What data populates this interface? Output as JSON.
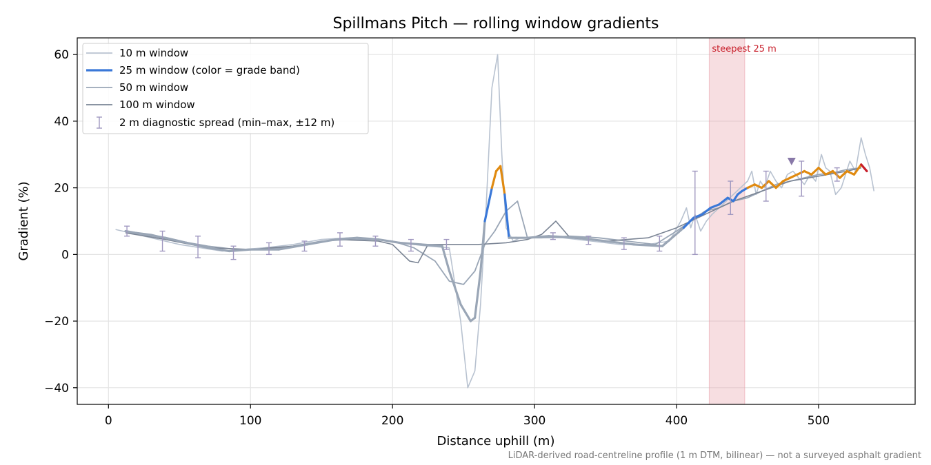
{
  "chart_data": {
    "type": "line",
    "title": "Spillmans Pitch — rolling window gradients",
    "xlabel": "Distance uphill (m)",
    "ylabel": "Gradient (%)",
    "xlim": [
      -22,
      568
    ],
    "ylim": [
      -45,
      65
    ],
    "xticks": [
      0,
      100,
      200,
      300,
      400,
      500
    ],
    "yticks": [
      -40,
      -20,
      0,
      20,
      40,
      60
    ],
    "xtick_labels": [
      "0",
      "100",
      "200",
      "300",
      "400",
      "500"
    ],
    "ytick_labels": [
      "−40",
      "−20",
      "0",
      "20",
      "40",
      "60"
    ],
    "grid": true,
    "legend_position": "top-left",
    "footnote": "LiDAR-derived road-centreline profile (1 m DTM, bilinear) — not a surveyed asphalt gradient",
    "highlight": {
      "label": "steepest 25 m",
      "x_start": 423,
      "x_end": 448,
      "color": "#e8a0a8"
    },
    "marker": {
      "x": 481,
      "y": 28,
      "color": "#8878a8",
      "shape": "triangle-down"
    },
    "colors": {
      "w10": "#b8c2d0",
      "w25": "#3a78d8",
      "w50": "#9aa6b6",
      "w100": "#7a8494",
      "spread": "#a098c0",
      "band_low": "#3a78d8",
      "band_mid": "#e08a10",
      "band_high": "#c81e2a"
    },
    "grade_bands": [
      {
        "max": 20,
        "color": "#3a78d8"
      },
      {
        "max": 26,
        "color": "#e08a10"
      },
      {
        "max": 999,
        "color": "#c81e2a"
      }
    ],
    "series": [
      {
        "name": "10 m window",
        "color": "#b8c2d0",
        "width": 1.6,
        "x": [
          5,
          20,
          35,
          50,
          65,
          80,
          95,
          110,
          130,
          150,
          170,
          190,
          205,
          225,
          240,
          248,
          253,
          258,
          262,
          266,
          270,
          274,
          277,
          280,
          285,
          290,
          300,
          320,
          340,
          360,
          380,
          395,
          403,
          407,
          410,
          413,
          417,
          421,
          425,
          430,
          435,
          440,
          445,
          450,
          453,
          456,
          459,
          462,
          466,
          470,
          474,
          478,
          482,
          486,
          490,
          494,
          498,
          502,
          505,
          508,
          512,
          516,
          519,
          522,
          526,
          530,
          533,
          536,
          539
        ],
        "y": [
          7.5,
          6,
          4.5,
          3,
          2,
          1,
          1.5,
          2,
          3,
          4.5,
          5,
          4.5,
          3.5,
          2.5,
          2,
          -20,
          -40,
          -35,
          -15,
          15,
          50,
          60,
          30,
          8,
          4,
          5,
          5,
          5,
          4,
          3,
          3,
          4,
          10,
          14,
          8,
          12,
          7,
          10,
          12,
          14,
          16,
          18,
          20,
          22,
          25,
          18,
          22,
          20,
          25,
          22,
          20,
          24,
          25,
          23,
          21,
          24,
          22,
          30,
          26,
          25,
          18,
          20,
          24,
          28,
          25,
          35,
          30,
          26,
          19
        ]
      },
      {
        "name": "25 m window (color = grade band)",
        "color": "#3a78d8",
        "width": 3.2,
        "x": [
          12,
          25,
          40,
          55,
          70,
          85,
          100,
          120,
          140,
          160,
          175,
          190,
          205,
          220,
          235,
          240,
          248,
          255,
          258,
          262,
          265,
          270,
          273,
          276,
          279,
          282,
          287,
          295,
          310,
          330,
          350,
          370,
          390,
          405,
          412,
          418,
          424,
          430,
          436,
          440,
          443,
          446,
          450,
          455,
          460,
          465,
          470,
          475,
          480,
          485,
          490,
          495,
          500,
          505,
          510,
          515,
          520,
          525,
          530,
          534
        ],
        "y": [
          7,
          6,
          5,
          3.5,
          2,
          1,
          1.5,
          1.5,
          3,
          4.5,
          5,
          4.5,
          3.5,
          3,
          2.5,
          -5,
          -15,
          -20,
          -19,
          -5,
          10,
          20,
          25,
          26.5,
          18,
          5,
          5,
          5,
          5.5,
          5,
          4,
          3,
          2.5,
          8,
          11,
          12,
          14,
          15,
          17,
          16,
          18,
          19,
          20,
          21,
          20,
          22,
          20,
          22,
          23,
          24,
          25,
          24,
          26,
          24,
          25,
          23,
          25,
          24,
          27,
          25
        ]
      },
      {
        "name": "50 m window",
        "color": "#9aa6b6",
        "width": 1.8,
        "x": [
          12,
          30,
          50,
          70,
          90,
          110,
          130,
          150,
          170,
          190,
          200,
          215,
          230,
          240,
          250,
          258,
          265,
          272,
          280,
          288,
          295,
          305,
          325,
          345,
          365,
          385,
          400,
          410,
          420,
          430,
          440,
          450,
          460,
          470,
          480,
          490,
          500,
          510,
          520,
          530
        ],
        "y": [
          7,
          6,
          4,
          2.5,
          1.5,
          1.5,
          2.5,
          4,
          4.5,
          4.5,
          4,
          2,
          -2,
          -8,
          -9,
          -5,
          3,
          7,
          13,
          16,
          5,
          5,
          5.5,
          5,
          4,
          3,
          7,
          10,
          13,
          14,
          16,
          17,
          19,
          21,
          22,
          23,
          24,
          24.5,
          25.5,
          26
        ]
      },
      {
        "name": "100 m window",
        "color": "#7a8494",
        "width": 1.6,
        "x": [
          12,
          40,
          70,
          100,
          130,
          160,
          190,
          200,
          212,
          218,
          225,
          240,
          260,
          280,
          295,
          305,
          315,
          325,
          350,
          380,
          400,
          420,
          440,
          460,
          480,
          500,
          520,
          530
        ],
        "y": [
          6.5,
          4.5,
          2,
          1.5,
          2.5,
          4.5,
          4,
          3,
          -2,
          -2.5,
          3,
          3,
          3,
          3.5,
          4.5,
          6,
          10,
          5,
          4,
          5,
          8,
          12,
          16,
          19,
          22,
          23.5,
          25,
          26
        ]
      }
    ],
    "spread": {
      "name": "2 m diagnostic spread (min–max, ±12 m)",
      "color": "#a098c0",
      "points": [
        {
          "x": 13,
          "lo": 5.5,
          "hi": 8.5
        },
        {
          "x": 38,
          "lo": 1,
          "hi": 7
        },
        {
          "x": 63,
          "lo": -1,
          "hi": 5.5
        },
        {
          "x": 88,
          "lo": -1.5,
          "hi": 2.5
        },
        {
          "x": 113,
          "lo": 0,
          "hi": 3.5
        },
        {
          "x": 138,
          "lo": 1,
          "hi": 4
        },
        {
          "x": 163,
          "lo": 2.5,
          "hi": 6.5
        },
        {
          "x": 188,
          "lo": 2.5,
          "hi": 5.5
        },
        {
          "x": 213,
          "lo": 1,
          "hi": 4.5
        },
        {
          "x": 238,
          "lo": 1.5,
          "hi": 4.5
        },
        {
          "x": 313,
          "lo": 4.5,
          "hi": 6.5
        },
        {
          "x": 338,
          "lo": 3,
          "hi": 5.5
        },
        {
          "x": 363,
          "lo": 1.5,
          "hi": 5
        },
        {
          "x": 388,
          "lo": 1,
          "hi": 5.5
        },
        {
          "x": 413,
          "lo": 0,
          "hi": 25
        },
        {
          "x": 438,
          "lo": 12,
          "hi": 22
        },
        {
          "x": 463,
          "lo": 16,
          "hi": 25
        },
        {
          "x": 488,
          "lo": 17.5,
          "hi": 28
        },
        {
          "x": 513,
          "lo": 22,
          "hi": 26
        }
      ]
    }
  }
}
